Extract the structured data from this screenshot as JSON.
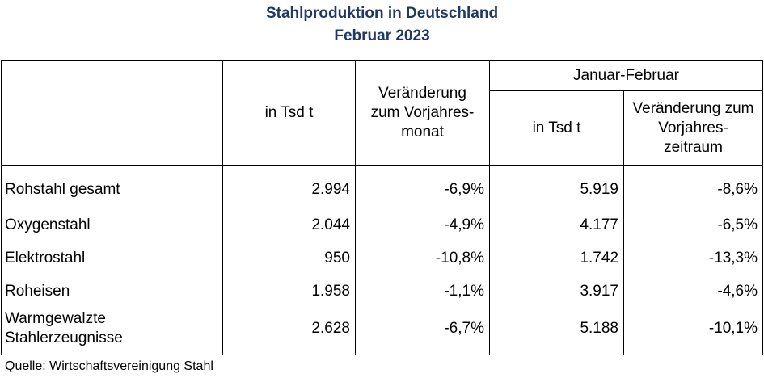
{
  "title_line1": "Stahlproduktion in Deutschland",
  "title_line2": "Februar 2023",
  "table": {
    "header": {
      "col2": "in Tsd t",
      "col3": "Veränderung zum Vorjahres-monat",
      "group": "Januar-Februar",
      "col4": "in Tsd t",
      "col5": "Veränderung zum Vorjahres-zeitraum"
    },
    "rows": [
      {
        "label": "Rohstahl gesamt",
        "tsd": "2.994",
        "vm": "-6,9%",
        "jf_tsd": "5.919",
        "vz": "-8,6%"
      },
      {
        "label": "Oxygenstahl",
        "tsd": "2.044",
        "vm": "-4,9%",
        "jf_tsd": "4.177",
        "vz": "-6,5%"
      },
      {
        "label": "Elektrostahl",
        "tsd": "950",
        "vm": "-10,8%",
        "jf_tsd": "1.742",
        "vz": "-13,3%"
      },
      {
        "label": "Roheisen",
        "tsd": "1.958",
        "vm": "-1,1%",
        "jf_tsd": "3.917",
        "vz": "-4,6%"
      },
      {
        "label": "Warmgewalzte Stahlerzeugnisse",
        "tsd": "2.628",
        "vm": "-6,7%",
        "jf_tsd": "5.188",
        "vz": "-10,1%"
      }
    ]
  },
  "source": "Quelle: Wirtschaftsvereinigung Stahl",
  "colors": {
    "title": "#1f3864",
    "text": "#000000",
    "border": "#000000"
  }
}
